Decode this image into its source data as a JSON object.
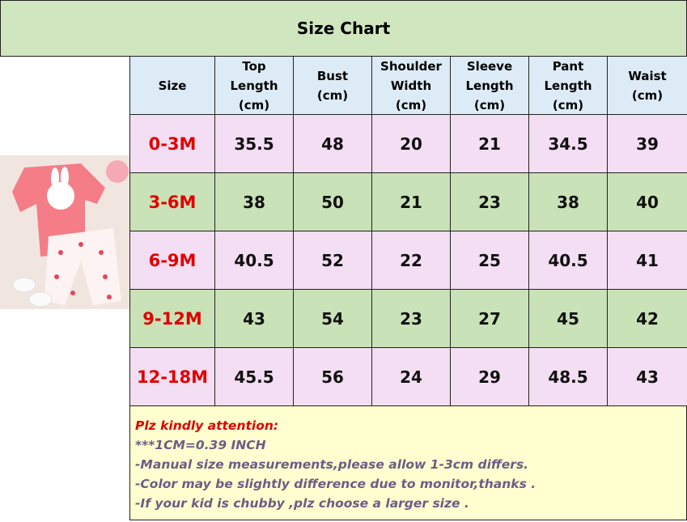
{
  "title": "Size Chart",
  "table": {
    "header": [
      "Size",
      "Top\nLength\n(cm)",
      "Bust\n(cm)",
      "Shoulder\nWidth\n(cm)",
      "Sleeve\nLength\n(cm)",
      "Pant\nLength\n(cm)",
      "Waist\n(cm)"
    ],
    "rows": [
      [
        "0-3M",
        "35.5",
        "48",
        "20",
        "21",
        "34.5",
        "39"
      ],
      [
        "3-6M",
        "38",
        "50",
        "21",
        "23",
        "38",
        "40"
      ],
      [
        "6-9M",
        "40.5",
        "52",
        "22",
        "25",
        "40.5",
        "41"
      ],
      [
        "9-12M",
        "43",
        "54",
        "23",
        "27",
        "45",
        "42"
      ],
      [
        "12-18M",
        "45.5",
        "56",
        "24",
        "29",
        "48.5",
        "43"
      ]
    ]
  },
  "notes": [
    "Plz kindly attention:",
    "***1CM=0.39 INCH",
    "-Manual size measurements,please allow 1-3cm differs.",
    "-Color may be slightly difference due to monitor,thanks .",
    "-If your kid is chubby ,plz choose a larger size ."
  ]
}
